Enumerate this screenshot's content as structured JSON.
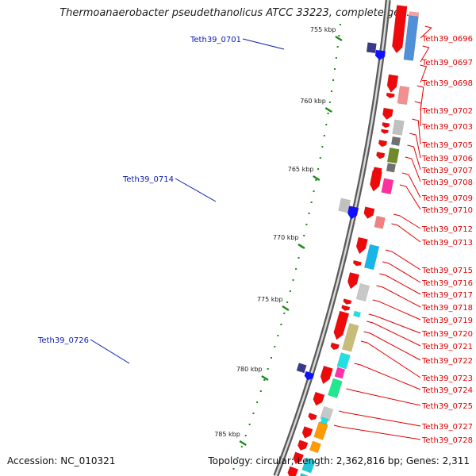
{
  "title": "Thermoanaerobacter pseudethanolicus ATCC 33223, complete gen...",
  "accession": "Accession: NC_010321",
  "topology": "Topology: circular; Length: 2,362,816 bp; Genes: 2,311",
  "ticks": [
    "755 kbp",
    "760 kbp",
    "765 kbp",
    "770 kbp",
    "775 kbp",
    "780 kbp",
    "785 kbp"
  ],
  "left_genes": [
    "Teth39_0701",
    "Teth39_0714",
    "Teth39_0726"
  ],
  "right_genes": [
    "Teth39_0696",
    "Teth39_0697",
    "Teth39_0698",
    "Teth39_0702",
    "Teth39_0703",
    "Teth39_0705",
    "Teth39_0706",
    "Teth39_0707",
    "Teth39_0708",
    "Teth39_0709",
    "Teth39_0710",
    "Teth39_0712",
    "Teth39_0713",
    "Teth39_0715",
    "Teth39_0716",
    "Teth39_0717",
    "Teth39_0718",
    "Teth39_0719",
    "Teth39_0720",
    "Teth39_0721",
    "Teth39_0722",
    "Teth39_0723",
    "Teth39_0724",
    "Teth39_0725",
    "Teth39_0727",
    "Teth39_0728"
  ],
  "colors": {
    "forward_strand": "#ff0000",
    "reverse_strand": "#1010ff",
    "left_label": "#0a1ab0",
    "right_label": "#e00000",
    "tick": "#1a8a1a",
    "backbone": "#808080"
  }
}
